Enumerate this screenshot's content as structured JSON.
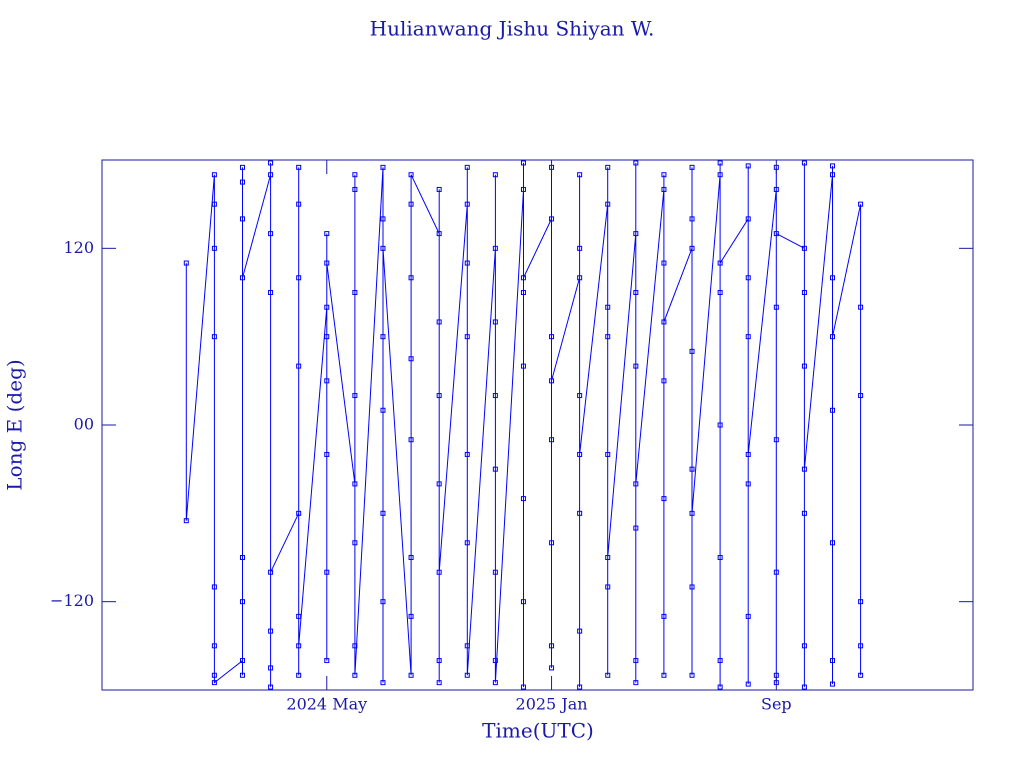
{
  "chart_data": {
    "type": "line",
    "title": "Hulianwang Jishu Shiyan W.",
    "x_label": "Time(UTC)",
    "y_label": "Long E (deg)",
    "xlim": [
      "2023-09",
      "2026-04"
    ],
    "xticks": [
      {
        "value": "2024-05",
        "label": "2024 May"
      },
      {
        "value": "2025-01",
        "label": "2025 Jan"
      },
      {
        "value": "2025-09",
        "label": "Sep"
      }
    ],
    "ylim": [
      -180,
      180
    ],
    "yticks": [
      {
        "value": -120,
        "label": "−120"
      },
      {
        "value": 0,
        "label": "00"
      },
      120
    ],
    "axis_color": "#1a1aa8",
    "x": [
      "2023-12",
      "2023-12",
      "2024-01",
      "2024-01",
      "2024-01",
      "2024-01",
      "2024-01",
      "2024-01",
      "2024-01",
      "2024-01",
      "2024-02",
      "2024-02",
      "2024-02",
      "2024-02",
      "2024-02",
      "2024-02",
      "2024-02",
      "2024-02",
      "2024-03",
      "2024-03",
      "2024-03",
      "2024-03",
      "2024-03",
      "2024-03",
      "2024-03",
      "2024-03",
      "2024-04",
      "2024-04",
      "2024-04",
      "2024-04",
      "2024-04",
      "2024-04",
      "2024-04",
      "2024-04",
      "2024-05",
      "2024-05",
      "2024-05",
      "2024-05",
      "2024-05",
      "2024-05",
      "2024-05",
      "2024-05",
      "2024-06",
      "2024-06",
      "2024-06",
      "2024-06",
      "2024-06",
      "2024-06",
      "2024-06",
      "2024-06",
      "2024-07",
      "2024-07",
      "2024-07",
      "2024-07",
      "2024-07",
      "2024-07",
      "2024-07",
      "2024-07",
      "2024-08",
      "2024-08",
      "2024-08",
      "2024-08",
      "2024-08",
      "2024-08",
      "2024-08",
      "2024-08",
      "2024-09",
      "2024-09",
      "2024-09",
      "2024-09",
      "2024-09",
      "2024-09",
      "2024-09",
      "2024-09",
      "2024-10",
      "2024-10",
      "2024-10",
      "2024-10",
      "2024-10",
      "2024-10",
      "2024-10",
      "2024-10",
      "2024-11",
      "2024-11",
      "2024-11",
      "2024-11",
      "2024-11",
      "2024-11",
      "2024-11",
      "2024-11",
      "2024-12",
      "2024-12",
      "2024-12",
      "2024-12",
      "2024-12",
      "2024-12",
      "2024-12",
      "2024-12",
      "2025-01",
      "2025-01",
      "2025-01",
      "2025-01",
      "2025-01",
      "2025-01",
      "2025-01",
      "2025-01",
      "2025-02",
      "2025-02",
      "2025-02",
      "2025-02",
      "2025-02",
      "2025-02",
      "2025-02",
      "2025-02",
      "2025-03",
      "2025-03",
      "2025-03",
      "2025-03",
      "2025-03",
      "2025-03",
      "2025-03",
      "2025-03",
      "2025-04",
      "2025-04",
      "2025-04",
      "2025-04",
      "2025-04",
      "2025-04",
      "2025-04",
      "2025-04",
      "2025-05",
      "2025-05",
      "2025-05",
      "2025-05",
      "2025-05",
      "2025-05",
      "2025-05",
      "2025-05",
      "2025-06",
      "2025-06",
      "2025-06",
      "2025-06",
      "2025-06",
      "2025-06",
      "2025-06",
      "2025-06",
      "2025-07",
      "2025-07",
      "2025-07",
      "2025-07",
      "2025-07",
      "2025-07",
      "2025-07",
      "2025-07",
      "2025-08",
      "2025-08",
      "2025-08",
      "2025-08",
      "2025-08",
      "2025-08",
      "2025-08",
      "2025-08",
      "2025-09",
      "2025-09",
      "2025-09",
      "2025-09",
      "2025-09",
      "2025-09",
      "2025-09",
      "2025-09",
      "2025-10",
      "2025-10",
      "2025-10",
      "2025-10",
      "2025-10",
      "2025-10",
      "2025-10",
      "2025-10",
      "2025-11",
      "2025-11",
      "2025-11",
      "2025-11",
      "2025-11",
      "2025-11",
      "2025-11",
      "2025-11",
      "2025-12",
      "2025-12",
      "2025-12",
      "2025-12",
      "2025-12",
      "2025-12"
    ],
    "series": [
      {
        "color": "#0000ff",
        "values": [
          110,
          -65,
          170,
          -170,
          120,
          -150,
          60,
          -110,
          150,
          -175,
          -160,
          175,
          -120,
          140,
          -90,
          165,
          -170,
          100,
          170,
          -165,
          90,
          -140,
          178,
          -178,
          130,
          -100,
          -60,
          150,
          -170,
          40,
          -130,
          100,
          175,
          -150,
          80,
          -100,
          30,
          -160,
          130,
          60,
          -20,
          110,
          -40,
          160,
          20,
          -150,
          90,
          -80,
          170,
          -170,
          175,
          -175,
          140,
          -120,
          60,
          10,
          -60,
          120,
          -170,
          150,
          -130,
          100,
          -90,
          45,
          -10,
          170,
          130,
          -160,
          70,
          -40,
          160,
          -175,
          20,
          -100,
          150,
          110,
          60,
          -20,
          -80,
          -150,
          175,
          -170,
          120,
          70,
          20,
          -30,
          -100,
          -160,
          170,
          -175,
          160,
          90,
          40,
          -50,
          -120,
          178,
          -178,
          100,
          140,
          60,
          -10,
          -80,
          -150,
          175,
          -165,
          30,
          100,
          20,
          -60,
          -140,
          170,
          -178,
          120,
          -20,
          150,
          80,
          -20,
          -110,
          175,
          -170,
          60,
          -90,
          130,
          40,
          -70,
          -160,
          178,
          -175,
          90,
          -40,
          160,
          110,
          30,
          -50,
          -130,
          170,
          -170,
          70,
          120,
          50,
          -30,
          -110,
          -170,
          175,
          140,
          -60,
          170,
          90,
          0,
          -90,
          -160,
          178,
          -178,
          110,
          140,
          60,
          -40,
          -130,
          176,
          -176,
          100,
          -20,
          160,
          80,
          -10,
          -100,
          -170,
          175,
          -175,
          130,
          120,
          40,
          -60,
          -150,
          178,
          -178,
          90,
          -30,
          170,
          100,
          10,
          -80,
          -160,
          176,
          -176,
          60,
          150,
          -150,
          80,
          -120,
          20,
          -170
        ]
      }
    ]
  }
}
